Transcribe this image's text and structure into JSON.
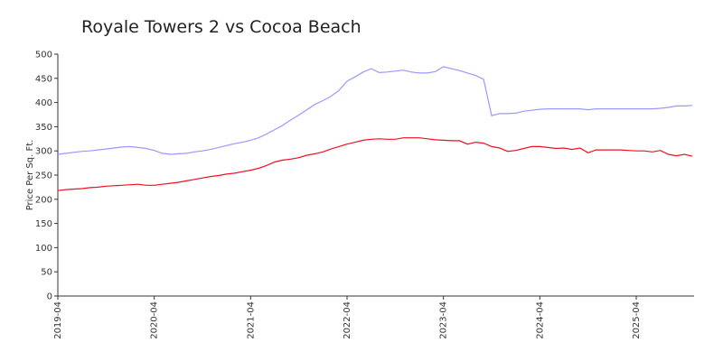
{
  "chart_data": {
    "type": "line",
    "title": "Royale Towers 2 vs Cocoa Beach",
    "ylabel": "Price Per Sq. Ft.",
    "x": [
      "2019-04",
      "2019-05",
      "2019-06",
      "2019-07",
      "2019-08",
      "2019-09",
      "2019-10",
      "2019-11",
      "2019-12",
      "2020-01",
      "2020-02",
      "2020-03",
      "2020-04",
      "2020-05",
      "2020-06",
      "2020-07",
      "2020-08",
      "2020-09",
      "2020-10",
      "2020-11",
      "2020-12",
      "2021-01",
      "2021-02",
      "2021-03",
      "2021-04",
      "2021-05",
      "2021-06",
      "2021-07",
      "2021-08",
      "2021-09",
      "2021-10",
      "2021-11",
      "2021-12",
      "2022-01",
      "2022-02",
      "2022-03",
      "2022-04",
      "2022-05",
      "2022-06",
      "2022-07",
      "2022-08",
      "2022-09",
      "2022-10",
      "2022-11",
      "2022-12",
      "2023-01",
      "2023-02",
      "2023-03",
      "2023-04",
      "2023-05",
      "2023-06",
      "2023-07",
      "2023-08",
      "2023-09",
      "2023-10",
      "2023-11",
      "2023-12",
      "2024-01",
      "2024-02",
      "2024-03",
      "2024-04",
      "2024-05",
      "2024-06",
      "2024-07",
      "2024-08",
      "2024-09",
      "2024-10",
      "2024-11",
      "2024-12",
      "2025-01",
      "2025-02",
      "2025-03",
      "2025-04",
      "2025-05",
      "2025-06",
      "2025-07",
      "2025-08",
      "2025-09",
      "2025-10",
      "2025-11"
    ],
    "xticks": [
      "2019-04",
      "2020-04",
      "2021-04",
      "2022-04",
      "2023-04",
      "2024-04",
      "2025-04"
    ],
    "series": [
      {
        "color": "#9999ff",
        "values": [
          293,
          295,
          297,
          299,
          300,
          302,
          304,
          306,
          308,
          309,
          307,
          305,
          301,
          295,
          293,
          294,
          295,
          298,
          300,
          303,
          307,
          311,
          315,
          318,
          322,
          327,
          335,
          344,
          353,
          364,
          374,
          385,
          396,
          404,
          413,
          425,
          444,
          453,
          463,
          470,
          462,
          463,
          465,
          467,
          463,
          461,
          461,
          464,
          474,
          470,
          466,
          461,
          456,
          448,
          373,
          377,
          377,
          378,
          382,
          384,
          386,
          387,
          387,
          387,
          387,
          387,
          385,
          387,
          387,
          387,
          387,
          387,
          387,
          387,
          387,
          388,
          390,
          393,
          393,
          394
        ]
      },
      {
        "color": "#ee1122",
        "values": [
          218,
          220,
          221,
          222,
          224,
          225,
          227,
          228,
          229,
          230,
          231,
          229,
          229,
          231,
          233,
          235,
          238,
          241,
          244,
          247,
          249,
          252,
          254,
          257,
          260,
          264,
          270,
          277,
          281,
          283,
          286,
          291,
          294,
          298,
          304,
          309,
          314,
          318,
          322,
          324,
          325,
          324,
          324,
          327,
          327,
          327,
          325,
          323,
          322,
          321,
          321,
          314,
          318,
          316,
          309,
          306,
          299,
          301,
          305,
          309,
          309,
          307,
          305,
          306,
          303,
          306,
          296,
          302,
          302,
          302,
          302,
          301,
          300,
          300,
          298,
          301,
          293,
          290,
          293,
          289
        ]
      }
    ],
    "ylim": [
      0,
      500
    ],
    "yticks": [
      0,
      50,
      100,
      150,
      200,
      250,
      300,
      350,
      400,
      450,
      500
    ]
  }
}
